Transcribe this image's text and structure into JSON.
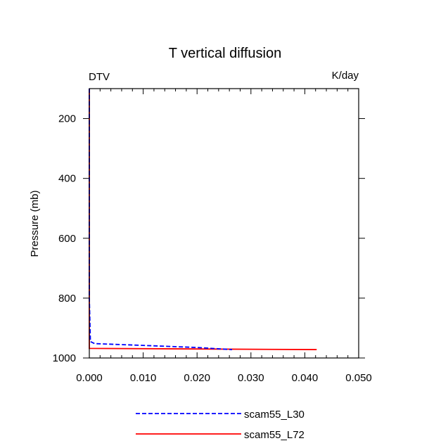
{
  "chart_data": {
    "type": "line",
    "title": "T vertical diffusion",
    "left_label": "DTV",
    "right_label": "K/day",
    "xlabel": "",
    "ylabel": "Pressure (mb)",
    "xlim": [
      0.0,
      0.05
    ],
    "ylim": [
      100,
      1000
    ],
    "y_inverted": true,
    "x_ticks": [
      0.0,
      0.01,
      0.02,
      0.03,
      0.04,
      0.05
    ],
    "x_tick_labels": [
      "0.000",
      "0.010",
      "0.020",
      "0.030",
      "0.040",
      "0.050"
    ],
    "y_ticks": [
      200,
      400,
      600,
      800,
      1000
    ],
    "y_tick_labels": [
      "200",
      "400",
      "600",
      "800",
      "1000"
    ],
    "legend_position": "bottom",
    "series": [
      {
        "name": "scam55_L30",
        "color": "#0000ff",
        "style": "dashed",
        "x": [
          0.0,
          0.0,
          0.0,
          0.0,
          0.0,
          0.0,
          0.0,
          0.0,
          0.0002,
          0.001,
          0.01,
          0.02,
          0.0265
        ],
        "y": [
          100,
          200,
          300,
          400,
          500,
          600,
          700,
          800,
          945,
          952,
          958,
          965,
          972
        ]
      },
      {
        "name": "scam55_L72",
        "color": "#ff0000",
        "style": "solid",
        "x": [
          0.0,
          0.0,
          0.0,
          0.0,
          0.0,
          0.0,
          0.0,
          0.0,
          0.0,
          0.0422
        ],
        "y": [
          100,
          200,
          300,
          400,
          500,
          600,
          700,
          800,
          968,
          972
        ]
      }
    ]
  }
}
